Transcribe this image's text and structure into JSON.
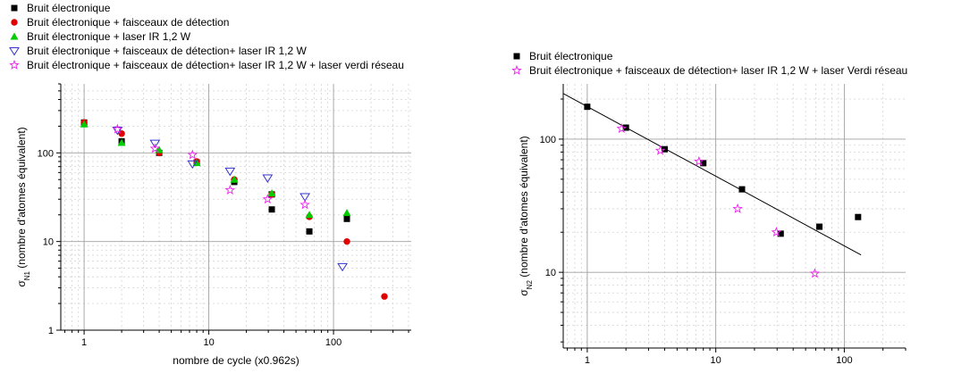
{
  "chart_data": [
    {
      "type": "scatter",
      "xscale": "log",
      "yscale": "log",
      "xlim": [
        0.65,
        420
      ],
      "ylim": [
        1,
        600
      ],
      "xlabel": "nombre de cycle (x0.962s)",
      "ylabel_main": "σ",
      "ylabel_sub": "N1",
      "ylabel_rest": " (nombre d'atomes équivalent)",
      "x_ticks": [
        1,
        10,
        100
      ],
      "x_tick_labels": [
        "1",
        "10",
        "100"
      ],
      "y_ticks": [
        1,
        10,
        100
      ],
      "y_tick_labels": [
        "1",
        "10",
        "100"
      ],
      "grid": true,
      "legend_position": "top-left",
      "series": [
        {
          "name": "Bruit électronique",
          "marker": "square",
          "color": "#000000",
          "x": [
            1,
            2,
            4,
            8,
            16,
            32,
            32,
            64,
            128
          ],
          "y": [
            220,
            135,
            100,
            78,
            47,
            34,
            23,
            13,
            18
          ]
        },
        {
          "name": "Bruit électronique + faisceaux de détection",
          "marker": "circle",
          "color": "#e00000",
          "x": [
            1,
            2,
            4,
            8,
            16,
            32,
            64,
            128,
            256
          ],
          "y": [
            220,
            165,
            100,
            80,
            50,
            34,
            19,
            10,
            2.4
          ]
        },
        {
          "name": "Bruit électronique + laser IR 1,2 W",
          "marker": "triangle-up",
          "color": "#00cc00",
          "x": [
            1,
            2,
            4,
            8,
            16,
            32,
            64,
            128
          ],
          "y": [
            210,
            130,
            108,
            77,
            50,
            35,
            20,
            21
          ]
        },
        {
          "name": "Bruit électronique + faisceaux de détection+ laser IR 1,2 W",
          "marker": "triangle-down-open",
          "color": "#3333cc",
          "x": [
            1.85,
            3.7,
            7.4,
            14.8,
            29.6,
            59,
            118
          ],
          "y": [
            180,
            128,
            75,
            62,
            52,
            32,
            5.2
          ]
        },
        {
          "name": "Bruit électronique + faisceaux de détection+ laser IR 1,2 W + laser verdi réseau",
          "marker": "star-open",
          "color": "#ee22ee",
          "x": [
            1.85,
            3.7,
            7.4,
            14.8,
            29.6,
            59
          ],
          "y": [
            185,
            112,
            95,
            38,
            30,
            26
          ]
        }
      ]
    },
    {
      "type": "scatter",
      "xscale": "log",
      "yscale": "log",
      "xlim": [
        0.65,
        300
      ],
      "ylim": [
        2.7,
        260
      ],
      "xlabel": "nombre de cycle (x0.962s)",
      "ylabel_main": "σ",
      "ylabel_sub": "N2",
      "ylabel_rest": " (nombre d'atomes équivalent)",
      "x_ticks": [
        1,
        10,
        100
      ],
      "x_tick_labels": [
        "1",
        "10",
        "100"
      ],
      "y_ticks": [
        10,
        100
      ],
      "y_tick_labels": [
        "10",
        "100"
      ],
      "grid": true,
      "legend_position": "top-left",
      "fit_line": {
        "x": [
          0.65,
          135
        ],
        "y": [
          220,
          13.5
        ]
      },
      "series": [
        {
          "name": "Bruit électronique",
          "marker": "square",
          "color": "#000000",
          "x": [
            1,
            2,
            4,
            8,
            16,
            32,
            64,
            128
          ],
          "y": [
            175,
            122,
            84,
            66,
            42,
            19.5,
            22,
            26
          ]
        },
        {
          "name": "Bruit électronique + faisceaux de détection+ laser IR 1,2 W + laser Verdi réseau",
          "marker": "star-open",
          "color": "#ee22ee",
          "x": [
            1.85,
            3.7,
            7.4,
            14.8,
            29.6,
            59
          ],
          "y": [
            120,
            82,
            68,
            30,
            20,
            9.8
          ]
        }
      ]
    }
  ]
}
